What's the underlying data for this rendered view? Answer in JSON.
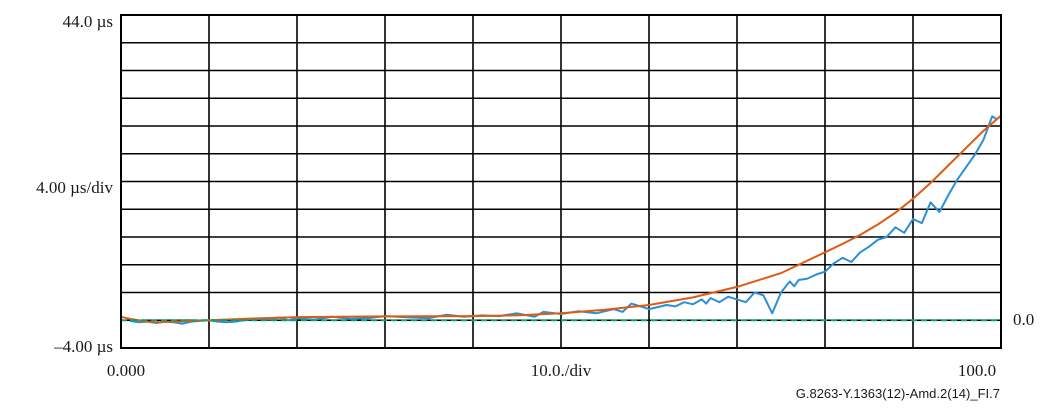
{
  "chart_data": {
    "type": "line",
    "title": "",
    "xlabel": "10.0./div",
    "ylabel": "4.00 µs/div",
    "xlim": [
      0,
      100
    ],
    "ylim": [
      -4,
      44
    ],
    "x_tick_labels": {
      "start": "0.000",
      "end": "100.0"
    },
    "y_tick_labels": {
      "top": "44.0 µs",
      "bottom": "–4.00 µs"
    },
    "right_axis_label": "0.0",
    "x_divisions": 10,
    "y_divisions": 12,
    "grid": true,
    "legend": "none",
    "series": [
      {
        "color": "#2b8fd6",
        "x": [
          1,
          2,
          3,
          4,
          5,
          6,
          7,
          8,
          9,
          10,
          11,
          12,
          13,
          15,
          17,
          18,
          19,
          20,
          22,
          24,
          26,
          28,
          30,
          33,
          35,
          37,
          39,
          41,
          43,
          45,
          47,
          48,
          50,
          52,
          54,
          56,
          57,
          58,
          60,
          62,
          63,
          64,
          65,
          66,
          66.5,
          67,
          68,
          69,
          70,
          71,
          72,
          73,
          74,
          75,
          76,
          76.5,
          77,
          78,
          79,
          80,
          81,
          82,
          83,
          84,
          85,
          86,
          87,
          88,
          89,
          90,
          91,
          92,
          93,
          94,
          95,
          96,
          97,
          98,
          99,
          99.5
        ],
        "y": [
          -0.1,
          -0.3,
          -0.2,
          -0.4,
          -0.2,
          -0.3,
          -0.5,
          -0.2,
          -0.1,
          0.0,
          -0.2,
          -0.3,
          -0.2,
          0.2,
          0.1,
          0.4,
          0.0,
          0.3,
          0.1,
          0.5,
          0.2,
          0.3,
          0.6,
          0.4,
          0.3,
          0.8,
          0.5,
          0.7,
          0.6,
          1.0,
          0.5,
          1.2,
          0.9,
          1.3,
          1.0,
          1.6,
          1.2,
          2.4,
          1.6,
          2.2,
          2.0,
          2.6,
          2.3,
          3.0,
          2.4,
          3.2,
          2.6,
          3.4,
          3.0,
          2.6,
          4.0,
          3.6,
          1.0,
          4.0,
          5.6,
          4.9,
          5.8,
          6.0,
          6.6,
          7.0,
          8.2,
          9.0,
          8.4,
          9.8,
          10.6,
          11.6,
          12.0,
          13.4,
          12.6,
          14.6,
          14.0,
          17.0,
          15.6,
          18.0,
          20.2,
          22.0,
          23.8,
          26.0,
          29.4,
          29.0
        ]
      },
      {
        "color": "#e05a14",
        "x": [
          0,
          1,
          2,
          3,
          4,
          5,
          6,
          8,
          10,
          15,
          20,
          25,
          30,
          40,
          45,
          50,
          55,
          60,
          65,
          70,
          75,
          80,
          82,
          84,
          86,
          88,
          90,
          92,
          94,
          96,
          98,
          100
        ],
        "y": [
          0.5,
          0.2,
          0.0,
          -0.2,
          -0.3,
          -0.25,
          -0.2,
          -0.1,
          0.0,
          0.25,
          0.45,
          0.5,
          0.55,
          0.6,
          0.7,
          1.0,
          1.5,
          2.2,
          3.3,
          4.8,
          6.8,
          9.8,
          11.0,
          12.3,
          13.8,
          15.5,
          17.5,
          19.8,
          22.3,
          24.8,
          27.3,
          29.5
        ]
      },
      {
        "color": "#00a86b",
        "dashed": true,
        "x": [
          0,
          100
        ],
        "y": [
          0,
          0
        ]
      }
    ]
  },
  "figure_id": "G.8263-Y.1363(12)-Amd.2(14)_FI.7"
}
